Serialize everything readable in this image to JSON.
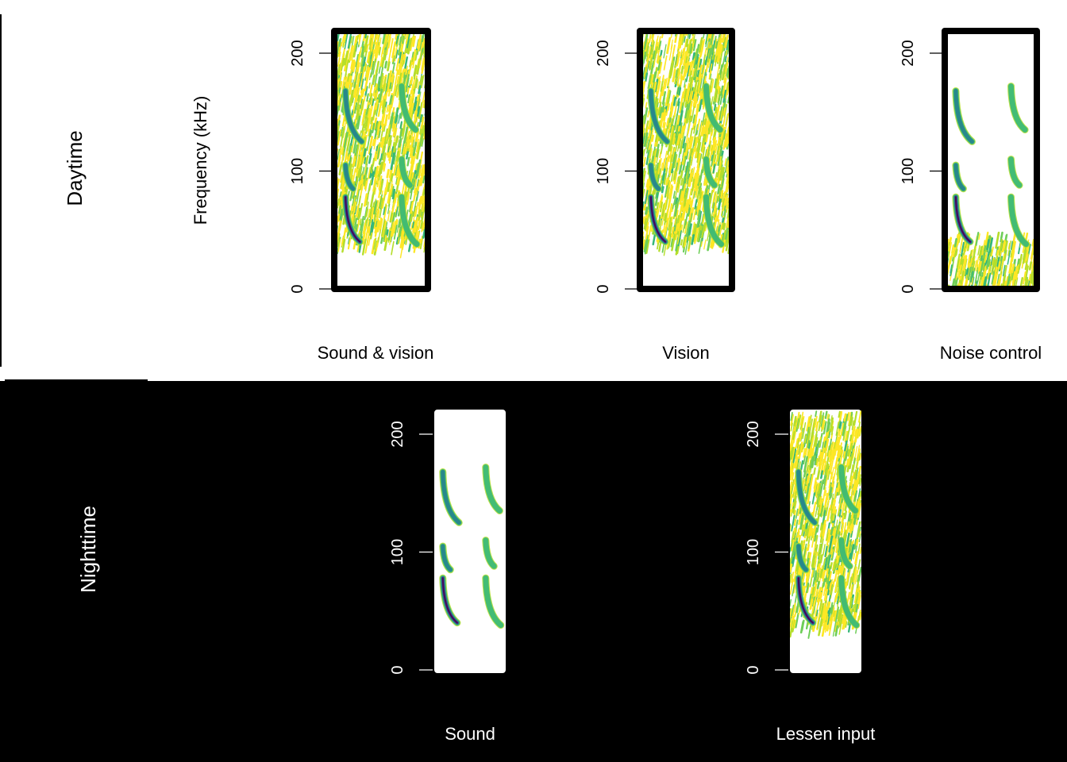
{
  "colors": {
    "day_background": "#ffffff",
    "night_background": "#000000",
    "day_frame": "#000000",
    "night_frame": "#ffffff",
    "colormap": [
      "#fde725",
      "#b5de2b",
      "#6ece58",
      "#35b779",
      "#1f9e89",
      "#26828e",
      "#31688e",
      "#3e4989",
      "#482878",
      "#440154"
    ]
  },
  "rows": [
    {
      "key": "day",
      "label": "Daytime",
      "ylabel": "Frequency (kHz)"
    },
    {
      "key": "night",
      "label": "Nighttime",
      "ylabel": ""
    }
  ],
  "chart_data": [
    {
      "type": "heatmap",
      "row": "day",
      "title": "Sound & vision",
      "xlabel": "",
      "ylabel": "Frequency (kHz)",
      "ylim": [
        0,
        220
      ],
      "yticks": [
        0,
        100,
        200
      ],
      "noise": {
        "present": true,
        "from_khz": 40,
        "to_khz": 220
      },
      "calls": [
        {
          "t": 0.12,
          "f_low": 40,
          "f_high": 78,
          "intensity": 1.0
        },
        {
          "t": 0.12,
          "f_low": 85,
          "f_high": 105,
          "intensity": 0.6
        },
        {
          "t": 0.12,
          "f_low": 125,
          "f_high": 168,
          "intensity": 0.55
        },
        {
          "t": 0.72,
          "f_low": 38,
          "f_high": 78,
          "intensity": 0.45
        },
        {
          "t": 0.72,
          "f_low": 88,
          "f_high": 110,
          "intensity": 0.4
        },
        {
          "t": 0.72,
          "f_low": 135,
          "f_high": 172,
          "intensity": 0.4
        }
      ]
    },
    {
      "type": "heatmap",
      "row": "day",
      "title": "Vision",
      "xlabel": "",
      "ylabel": "",
      "ylim": [
        0,
        220
      ],
      "yticks": [
        0,
        100,
        200
      ],
      "noise": {
        "present": true,
        "from_khz": 40,
        "to_khz": 220
      },
      "calls": [
        {
          "t": 0.12,
          "f_low": 40,
          "f_high": 78,
          "intensity": 1.0
        },
        {
          "t": 0.12,
          "f_low": 85,
          "f_high": 105,
          "intensity": 0.6
        },
        {
          "t": 0.12,
          "f_low": 125,
          "f_high": 168,
          "intensity": 0.55
        },
        {
          "t": 0.72,
          "f_low": 38,
          "f_high": 78,
          "intensity": 0.45
        },
        {
          "t": 0.72,
          "f_low": 88,
          "f_high": 110,
          "intensity": 0.4
        },
        {
          "t": 0.72,
          "f_low": 135,
          "f_high": 172,
          "intensity": 0.4
        }
      ]
    },
    {
      "type": "heatmap",
      "row": "day",
      "title": "Noise control",
      "xlabel": "",
      "ylabel": "",
      "ylim": [
        0,
        220
      ],
      "yticks": [
        0,
        100,
        200
      ],
      "noise": {
        "present": true,
        "from_khz": 0,
        "to_khz": 48
      },
      "calls": [
        {
          "t": 0.12,
          "f_low": 40,
          "f_high": 78,
          "intensity": 1.0
        },
        {
          "t": 0.12,
          "f_low": 85,
          "f_high": 105,
          "intensity": 0.6
        },
        {
          "t": 0.12,
          "f_low": 125,
          "f_high": 168,
          "intensity": 0.55
        },
        {
          "t": 0.72,
          "f_low": 38,
          "f_high": 78,
          "intensity": 0.45
        },
        {
          "t": 0.72,
          "f_low": 88,
          "f_high": 110,
          "intensity": 0.4
        },
        {
          "t": 0.72,
          "f_low": 135,
          "f_high": 172,
          "intensity": 0.4
        }
      ]
    },
    {
      "type": "heatmap",
      "row": "night",
      "title": "Sound",
      "xlabel": "",
      "ylabel": "",
      "ylim": [
        0,
        220
      ],
      "yticks": [
        0,
        100,
        200
      ],
      "noise": {
        "present": false
      },
      "calls": [
        {
          "t": 0.12,
          "f_low": 40,
          "f_high": 78,
          "intensity": 1.0
        },
        {
          "t": 0.12,
          "f_low": 85,
          "f_high": 105,
          "intensity": 0.6
        },
        {
          "t": 0.12,
          "f_low": 125,
          "f_high": 168,
          "intensity": 0.55
        },
        {
          "t": 0.72,
          "f_low": 38,
          "f_high": 78,
          "intensity": 0.45
        },
        {
          "t": 0.72,
          "f_low": 88,
          "f_high": 110,
          "intensity": 0.4
        },
        {
          "t": 0.72,
          "f_low": 135,
          "f_high": 172,
          "intensity": 0.4
        }
      ]
    },
    {
      "type": "heatmap",
      "row": "night",
      "title": "Lessen input",
      "xlabel": "",
      "ylabel": "",
      "ylim": [
        0,
        220
      ],
      "yticks": [
        0,
        100,
        200
      ],
      "noise": {
        "present": true,
        "from_khz": 40,
        "to_khz": 220
      },
      "calls": [
        {
          "t": 0.12,
          "f_low": 40,
          "f_high": 78,
          "intensity": 1.0
        },
        {
          "t": 0.12,
          "f_low": 85,
          "f_high": 105,
          "intensity": 0.6
        },
        {
          "t": 0.12,
          "f_low": 125,
          "f_high": 168,
          "intensity": 0.55
        },
        {
          "t": 0.72,
          "f_low": 38,
          "f_high": 78,
          "intensity": 0.45
        },
        {
          "t": 0.72,
          "f_low": 88,
          "f_high": 110,
          "intensity": 0.4
        },
        {
          "t": 0.72,
          "f_low": 135,
          "f_high": 172,
          "intensity": 0.4
        }
      ]
    }
  ]
}
